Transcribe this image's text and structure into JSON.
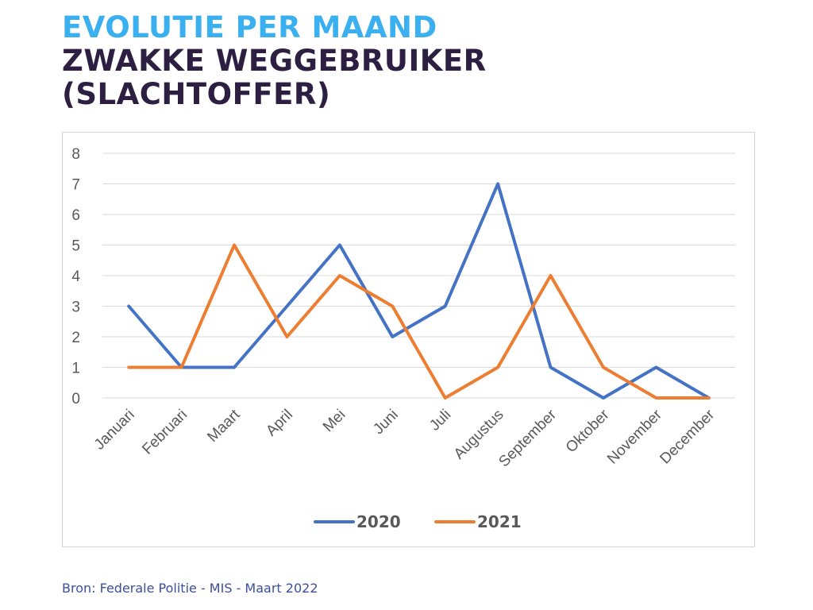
{
  "header": {
    "title_line1": "EVOLUTIE PER MAAND",
    "title_line2": "ZWAKKE WEGGEBRUIKER",
    "title_line3": "(SLACHTOFFER)"
  },
  "source": "Bron: Federale Politie - MIS - Maart 2022",
  "chart_data": {
    "type": "line",
    "categories": [
      "Januari",
      "Februari",
      "Maart",
      "April",
      "Mei",
      "Juni",
      "Juli",
      "Augustus",
      "September",
      "Oktober",
      "November",
      "December"
    ],
    "series": [
      {
        "name": "2020",
        "color": "#4472c4",
        "values": [
          3,
          1,
          1,
          3,
          5,
          2,
          3,
          7,
          1,
          0,
          1,
          0
        ]
      },
      {
        "name": "2021",
        "color": "#ed7d31",
        "values": [
          1,
          1,
          5,
          2,
          4,
          3,
          0,
          1,
          4,
          1,
          0,
          0
        ]
      }
    ],
    "ylim": [
      0,
      8
    ],
    "yticks": [
      "0",
      "1",
      "2",
      "3",
      "4",
      "5",
      "6",
      "7",
      "8"
    ],
    "grid": true,
    "legend_position": "bottom"
  }
}
